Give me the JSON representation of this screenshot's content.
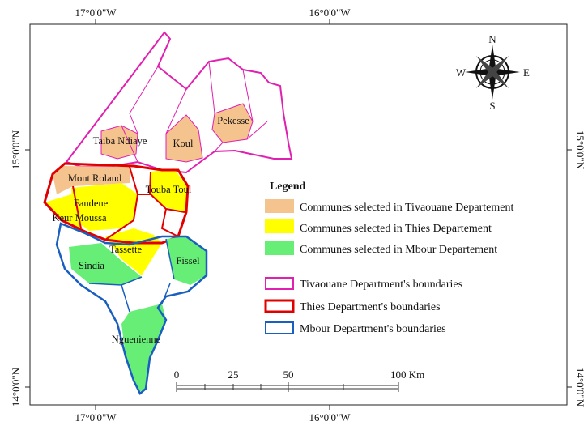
{
  "coordinates": {
    "top": [
      "17°0'0\"W",
      "16°0'0\"W"
    ],
    "bottom": [
      "17°0'0\"W",
      "16°0'0\"W"
    ],
    "left": [
      "15°0'0\"N",
      "14°0'0\"N"
    ],
    "right": [
      "15°0'0\"N",
      "14°0'0\"N"
    ]
  },
  "communes": [
    {
      "label": "Taiba Ndiaye"
    },
    {
      "label": "Koul"
    },
    {
      "label": "Pekesse"
    },
    {
      "label": "Mont Roland"
    },
    {
      "label": "Touba Toul"
    },
    {
      "label": "Fandene"
    },
    {
      "label": "Keur Moussa"
    },
    {
      "label": "Tassette"
    },
    {
      "label": "Sindia"
    },
    {
      "label": "Fissel"
    },
    {
      "label": "Nguenienne"
    }
  ],
  "legend": {
    "title": "Legend",
    "items": [
      "Communes selected in Tivaouane Departement",
      "Communes selected in Thies Departement",
      "Communes selected in Mbour Departement",
      "Tivaouane Department's boundaries",
      "Thies Department's boundaries",
      "Mbour Department's boundaries"
    ]
  },
  "compass": {
    "north": "N",
    "south": "S",
    "east": "E",
    "west": "W"
  },
  "scale_bar": {
    "labels": [
      "0",
      "25",
      "50",
      "100 Km"
    ]
  }
}
